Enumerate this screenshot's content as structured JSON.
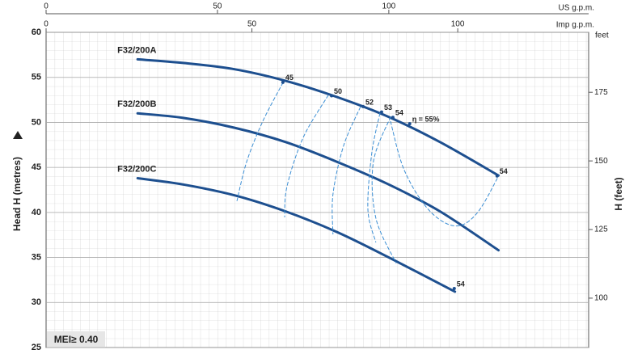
{
  "chart_data": {
    "type": "line",
    "x_label": "US g.p.m.",
    "x2_label": "Imp g.p.m.",
    "y_label": "Head H (metres)",
    "y2_label": "H (feet)",
    "y2_unit": "feet",
    "badge": "MEI≥ 0.40",
    "xlim": [
      0,
      158.3
    ],
    "xticks": [
      0,
      50,
      100
    ],
    "x2lim": [
      0,
      131.8
    ],
    "x2ticks": [
      0,
      50,
      100
    ],
    "ylim": [
      25,
      60
    ],
    "yticks": [
      25,
      30,
      35,
      40,
      45,
      50,
      55,
      60
    ],
    "y2lim": [
      82.02,
      196.85
    ],
    "y2ticks": [
      100,
      125,
      150,
      175
    ],
    "grid": true,
    "series": [
      {
        "name": "F32/200A",
        "color": "#1d4f8f",
        "x": [
          26.7,
          40,
          55,
          70,
          85,
          100,
          115,
          132
        ],
        "values": [
          57,
          56.6,
          55.9,
          54.6,
          52.8,
          50.6,
          47.8,
          44.1
        ]
      },
      {
        "name": "F32/200B",
        "color": "#1d4f8f",
        "x": [
          26.7,
          40,
          55,
          70,
          85,
          100,
          115,
          132
        ],
        "values": [
          51.0,
          50.5,
          49.4,
          47.8,
          45.6,
          43.1,
          40.1,
          35.8
        ]
      },
      {
        "name": "F32/200C",
        "color": "#1d4f8f",
        "x": [
          26.7,
          40,
          55,
          70,
          85,
          100,
          119.3
        ],
        "values": [
          43.8,
          43.1,
          41.9,
          40.1,
          37.8,
          35.0,
          31.2
        ]
      },
      {
        "dashed": true,
        "color": "#3b8ed4",
        "x": [
          69.1,
          63.2,
          58.5,
          55.7
        ],
        "values": [
          54.4,
          50.1,
          45.6,
          41.3
        ]
      },
      {
        "dashed": true,
        "color": "#3b8ed4",
        "x": [
          82.3,
          75.0,
          70.3,
          69.6
        ],
        "values": [
          53.0,
          48.3,
          42.9,
          39.5
        ]
      },
      {
        "dashed": true,
        "color": "#3b8ed4",
        "x": [
          91.7,
          86.8,
          83.7,
          83.7
        ],
        "values": [
          51.7,
          47.4,
          42.0,
          37.6
        ]
      },
      {
        "dashed": true,
        "color": "#3b8ed4",
        "x": [
          97.4,
          95.0,
          93.9,
          96.2
        ],
        "values": [
          51.0,
          46.5,
          40.3,
          36.7
        ]
      },
      {
        "dashed": true,
        "color": "#3b8ed4",
        "x": [
          100.5,
          95.5,
          96.2,
          102.1
        ],
        "values": [
          50.6,
          45.6,
          39.4,
          34.4
        ]
      },
      {
        "dashed": true,
        "color": "#3b8ed4",
        "x": [
          100.5,
          104.5,
          111.6,
          119.3,
          125.7,
          132.1
        ],
        "values": [
          50.1,
          44.7,
          40.3,
          38.5,
          39.9,
          44.1
        ]
      }
    ],
    "annotations": [
      {
        "text": "45",
        "x": 69.8,
        "y": 54.9
      },
      {
        "text": "50",
        "x": 84,
        "y": 53.4
      },
      {
        "text": "52",
        "x": 93.2,
        "y": 52.2
      },
      {
        "text": "53",
        "x": 98.6,
        "y": 51.6
      },
      {
        "text": "54",
        "x": 101.9,
        "y": 51.0
      },
      {
        "text": "η = 55%",
        "x": 106.8,
        "y": 50.3
      },
      {
        "text": "54",
        "x": 132.3,
        "y": 44.5
      },
      {
        "text": "54",
        "x": 119.8,
        "y": 32.0
      }
    ]
  }
}
